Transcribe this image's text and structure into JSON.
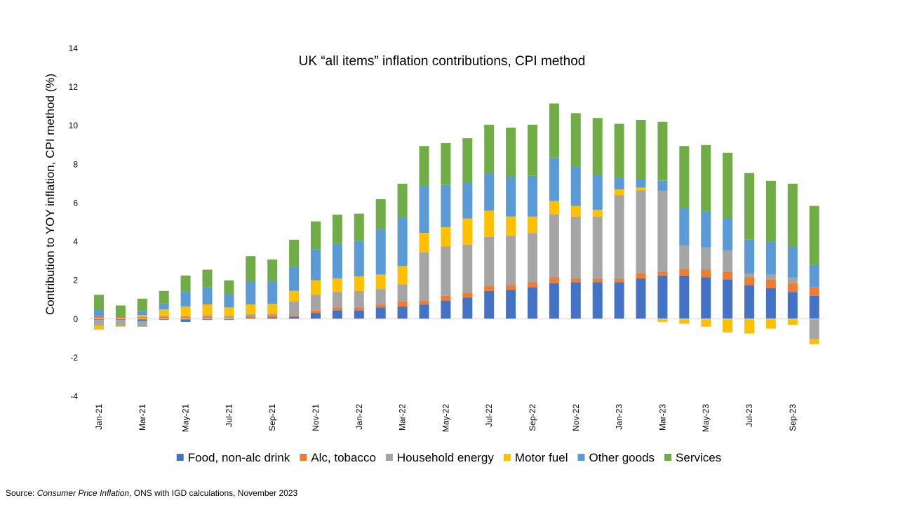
{
  "chart_data": {
    "type": "bar",
    "stacked": true,
    "title": "UK “all items” inflation contributions, CPI method",
    "xlabel": "",
    "ylabel": "Contribution to YOY inflation, CPI method (%)",
    "ylim": [
      -4,
      14
    ],
    "yticks": [
      -4,
      -2,
      0,
      2,
      4,
      6,
      8,
      10,
      12,
      14
    ],
    "grid": false,
    "legend_position": "bottom",
    "categories": [
      "Jan-21",
      "Feb-21",
      "Mar-21",
      "Apr-21",
      "May-21",
      "Jun-21",
      "Jul-21",
      "Aug-21",
      "Sep-21",
      "Oct-21",
      "Nov-21",
      "Dec-21",
      "Jan-22",
      "Feb-22",
      "Mar-22",
      "Apr-22",
      "May-22",
      "Jun-22",
      "Jul-22",
      "Aug-22",
      "Sep-22",
      "Oct-22",
      "Nov-22",
      "Dec-22",
      "Jan-23",
      "Feb-23",
      "Mar-23",
      "Apr-23",
      "May-23",
      "Jun-23",
      "Jul-23",
      "Aug-23",
      "Sep-23",
      "Oct-23"
    ],
    "tick_labels": [
      "Jan-21",
      "",
      "Mar-21",
      "",
      "May-21",
      "",
      "Jul-21",
      "",
      "Sep-21",
      "",
      "Nov-21",
      "",
      "Jan-22",
      "",
      "Mar-22",
      "",
      "May-22",
      "",
      "Jul-22",
      "",
      "Sep-22",
      "",
      "Nov-22",
      "",
      "Jan-23",
      "",
      "Mar-23",
      "",
      "May-23",
      "",
      "Jul-23",
      "",
      "Sep-23",
      ""
    ],
    "series": [
      {
        "name": "Food, non-alc drink",
        "color": "#4472C4",
        "values": [
          -0.05,
          -0.05,
          -0.1,
          -0.05,
          -0.15,
          -0.05,
          -0.05,
          0.05,
          0.08,
          0.1,
          0.3,
          0.45,
          0.45,
          0.6,
          0.65,
          0.75,
          0.95,
          1.1,
          1.45,
          1.5,
          1.65,
          1.85,
          1.9,
          1.9,
          1.9,
          2.1,
          2.25,
          2.25,
          2.15,
          2.05,
          1.75,
          1.6,
          1.4,
          1.2
        ]
      },
      {
        "name": "Alc, tobacco",
        "color": "#ED7D31",
        "values": [
          0.15,
          0.1,
          0.1,
          0.1,
          0.1,
          0.1,
          0.05,
          0.1,
          0.1,
          0.1,
          0.15,
          0.15,
          0.15,
          0.15,
          0.25,
          0.2,
          0.25,
          0.25,
          0.25,
          0.25,
          0.25,
          0.3,
          0.2,
          0.2,
          0.2,
          0.25,
          0.2,
          0.35,
          0.4,
          0.4,
          0.4,
          0.45,
          0.45,
          0.45
        ]
      },
      {
        "name": "Household energy",
        "color": "#A5A5A5",
        "values": [
          -0.3,
          -0.3,
          -0.3,
          0.05,
          0.05,
          0.1,
          0.1,
          0.1,
          0.1,
          0.7,
          0.8,
          0.8,
          0.85,
          0.8,
          0.9,
          2.5,
          2.55,
          2.5,
          2.55,
          2.55,
          2.55,
          3.25,
          3.2,
          3.2,
          4.3,
          4.3,
          4.2,
          1.2,
          1.15,
          1.1,
          0.2,
          0.25,
          0.3,
          -1.05
        ]
      },
      {
        "name": "Motor fuel",
        "color": "#FFC000",
        "values": [
          -0.2,
          -0.05,
          0.1,
          0.35,
          0.5,
          0.55,
          0.45,
          0.5,
          0.5,
          0.55,
          0.75,
          0.7,
          0.75,
          0.75,
          0.95,
          1.0,
          1.0,
          1.35,
          1.35,
          1.0,
          0.85,
          0.7,
          0.55,
          0.35,
          0.3,
          0.15,
          -0.15,
          -0.25,
          -0.4,
          -0.7,
          -0.75,
          -0.5,
          -0.3,
          -0.25
        ]
      },
      {
        "name": "Other goods",
        "color": "#5B9BD5",
        "values": [
          0.35,
          0.0,
          0.2,
          0.3,
          0.75,
          0.9,
          0.7,
          1.2,
          1.15,
          1.25,
          1.6,
          1.8,
          1.85,
          2.35,
          2.5,
          2.45,
          2.2,
          1.85,
          1.95,
          2.05,
          2.1,
          2.25,
          2.05,
          1.8,
          0.6,
          0.45,
          0.5,
          1.95,
          1.85,
          1.65,
          1.75,
          1.7,
          1.6,
          1.15
        ]
      },
      {
        "name": "Services",
        "color": "#70AD47",
        "values": [
          0.75,
          0.6,
          0.65,
          0.65,
          0.85,
          0.9,
          0.7,
          1.3,
          1.15,
          1.4,
          1.45,
          1.5,
          1.4,
          1.55,
          1.75,
          2.05,
          2.15,
          2.3,
          2.5,
          2.55,
          2.65,
          2.8,
          2.75,
          2.95,
          2.8,
          3.05,
          3.05,
          3.2,
          3.45,
          3.4,
          3.45,
          3.15,
          3.25,
          3.05
        ]
      }
    ]
  },
  "source": {
    "prefix": "Source: ",
    "italic": "Consumer Price Inflation",
    "suffix": ", ONS with IGD calculations, November 2023"
  }
}
